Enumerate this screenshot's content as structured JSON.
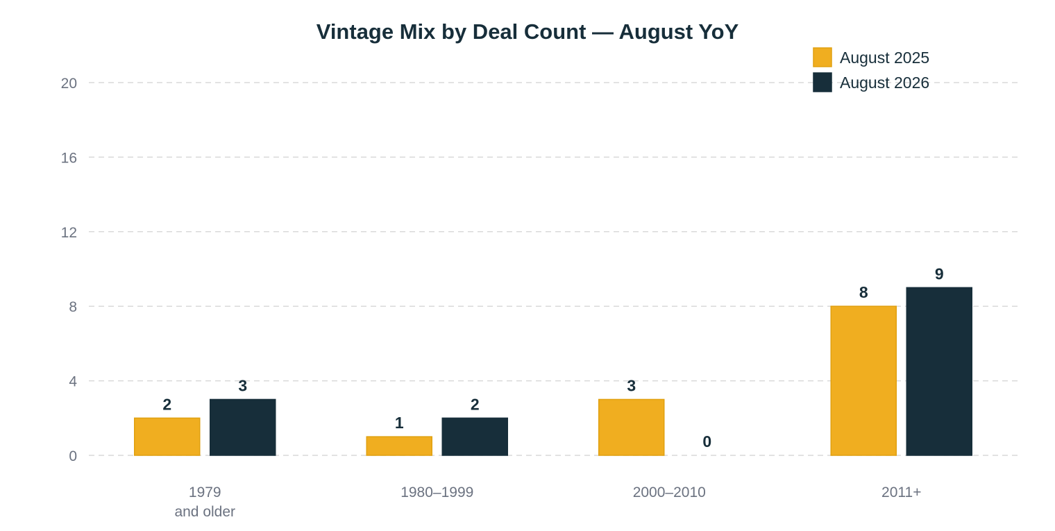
{
  "chart_data": {
    "type": "bar",
    "title": "Vintage Mix by Deal Count — August YoY",
    "xlabel": "",
    "ylabel": "",
    "categories": [
      [
        "1979",
        "and older"
      ],
      [
        "1980–1999"
      ],
      [
        "2000–2010"
      ],
      [
        "2011+"
      ]
    ],
    "series": [
      {
        "name": "August 2025",
        "values": [
          2,
          1,
          3,
          8
        ],
        "color": "#F0AE20"
      },
      {
        "name": "August 2026",
        "values": [
          3,
          2,
          0,
          9
        ],
        "color": "#172E3A"
      }
    ],
    "ylim": [
      0,
      20
    ],
    "yticks": [
      0,
      4,
      8,
      12,
      16,
      20
    ],
    "grid": true,
    "legend_position": "top-right",
    "colors": {
      "title": "#172E3A",
      "axis_text": "#6B7280",
      "grid": "#D9D9D9",
      "label": "#172E3A"
    }
  }
}
